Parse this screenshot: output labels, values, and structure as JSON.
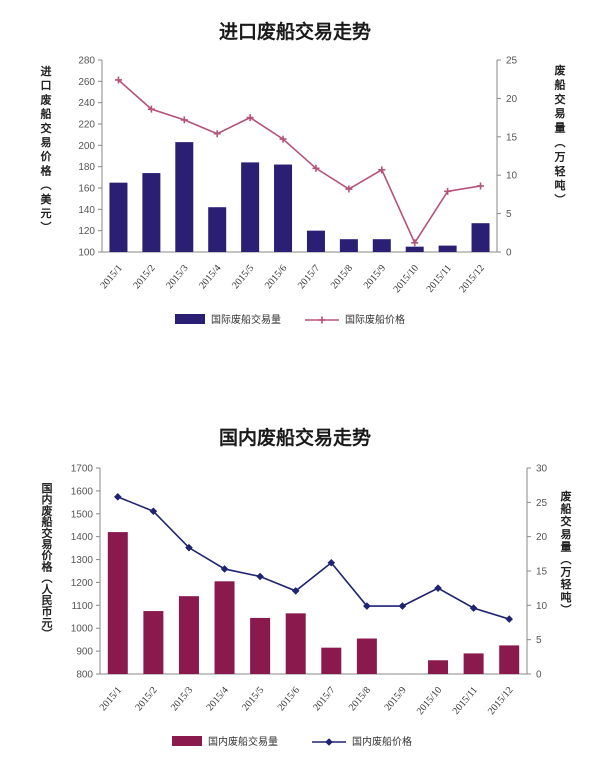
{
  "chart_data": [
    {
      "type": "bar",
      "title": "进口废船交易走势",
      "categories": [
        "2015/1",
        "2015/2",
        "2015/3",
        "2015/4",
        "2015/5",
        "2015/6",
        "2015/7",
        "2015/8",
        "2015/9",
        "2015/10",
        "2015/11",
        "2015/12"
      ],
      "left_axis_label": [
        "进",
        "口",
        "废",
        "船",
        "交",
        "易",
        "价",
        "格",
        "︵",
        "美",
        "元",
        "︶"
      ],
      "right_axis_label": [
        "废",
        "船",
        "交",
        "易",
        "量",
        "︵",
        "万",
        "轻",
        "吨",
        "︶"
      ],
      "left_ylim": [
        100,
        280
      ],
      "left_ticks": [
        "100",
        "120",
        "140",
        "160",
        "180",
        "200",
        "220",
        "240",
        "260",
        "280"
      ],
      "right_ylim": [
        0,
        25
      ],
      "right_ticks": [
        "0",
        "5",
        "10",
        "15",
        "20",
        "25"
      ],
      "series": [
        {
          "name": "国际废船交易量",
          "kind": "bar",
          "axis": "left",
          "color": "#2b1f74",
          "values": [
            165,
            174,
            203,
            142,
            184,
            182,
            120,
            112,
            112,
            105,
            106,
            127
          ]
        },
        {
          "name": "国际废船价格",
          "kind": "line",
          "axis": "right",
          "color": "#b5527a",
          "values": [
            22.4,
            18.6,
            17.2,
            15.4,
            17.5,
            14.7,
            10.9,
            8.2,
            10.7,
            1.2,
            7.9,
            8.6
          ]
        }
      ],
      "grid": false,
      "legend_position": "bottom"
    },
    {
      "type": "bar",
      "title": "国内废船交易走势",
      "categories": [
        "2015/1",
        "2015/2",
        "2015/3",
        "2015/4",
        "2015/5",
        "2015/6",
        "2015/7",
        "2015/8",
        "2015/9",
        "2015/10",
        "2015/11",
        "2015/12"
      ],
      "left_axis_label": [
        "国",
        "内",
        "废",
        "船",
        "交",
        "易",
        "价",
        "格",
        "︵",
        "人",
        "民",
        "币",
        "元",
        "︶"
      ],
      "right_axis_label": [
        "废",
        "船",
        "交",
        "易",
        "量",
        "︵",
        "万",
        "轻",
        "吨",
        "︶"
      ],
      "left_ylim": [
        800,
        1700
      ],
      "left_ticks": [
        "800",
        "900",
        "1000",
        "1100",
        "1200",
        "1300",
        "1400",
        "1500",
        "1600",
        "1700"
      ],
      "right_ylim": [
        0,
        30
      ],
      "right_ticks": [
        "0",
        "5",
        "10",
        "15",
        "20",
        "25",
        "30"
      ],
      "series": [
        {
          "name": "国内废船交易量",
          "kind": "bar",
          "axis": "left",
          "color": "#8a1a4e",
          "values": [
            1420,
            1075,
            1140,
            1205,
            1045,
            1065,
            915,
            955,
            800,
            860,
            890,
            925
          ]
        },
        {
          "name": "国内废船价格",
          "kind": "line",
          "axis": "right",
          "color": "#1f2470",
          "values": [
            25.8,
            23.7,
            18.4,
            15.3,
            14.2,
            12.1,
            16.2,
            9.9,
            9.9,
            12.5,
            9.6,
            8.0
          ]
        }
      ],
      "grid": false,
      "legend_position": "bottom"
    }
  ]
}
